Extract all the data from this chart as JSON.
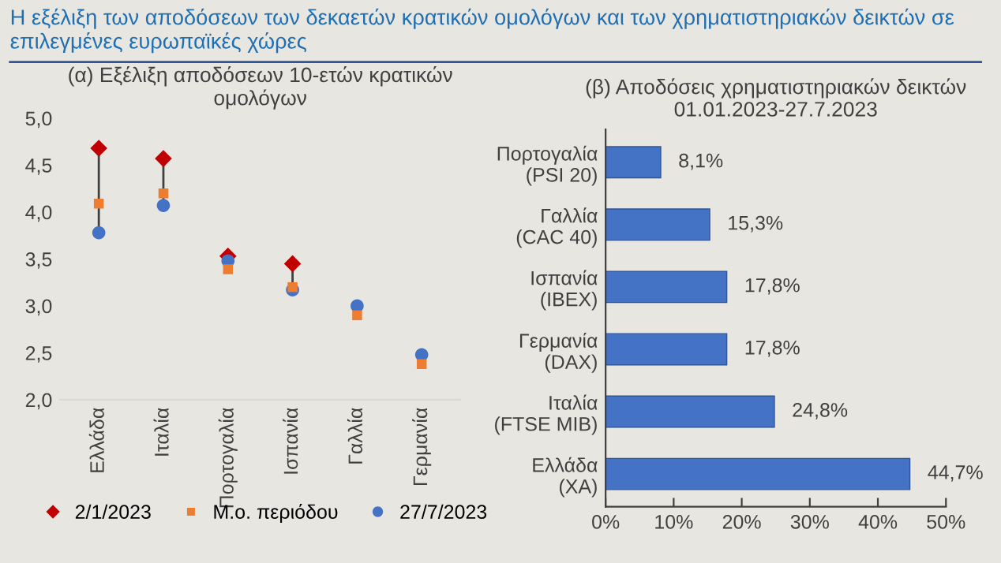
{
  "chart_data": [
    {
      "type": "scatter",
      "title": "(α) Εξέλιξη αποδόσεων 10-ετών κρατικών\nομολόγων",
      "annotations": [
        "Η εξέλιξη των αποδόσεων των δεκαετών κρατικών ομολόγων και των χρηματιστηριακών δεικτών σε\nεπιλεγμένες ευρωπαϊκές χώρες"
      ],
      "categories": [
        "Ελλάδα",
        "Ιταλία",
        "Πορτογαλία",
        "Ισπανία",
        "Γαλλία",
        "Γερμανία"
      ],
      "series": [
        {
          "name": "2/1/2023",
          "color": "#c00000",
          "marker": "diamond",
          "values": [
            4.68,
            4.57,
            3.53,
            3.45,
            null,
            null
          ]
        },
        {
          "name": "Μ.ο. περιόδου",
          "color": "#ed7d31",
          "marker": "square",
          "values": [
            4.09,
            4.2,
            3.39,
            3.2,
            2.9,
            2.38
          ]
        },
        {
          "name": "27/7/2023",
          "color": "#4472c4",
          "marker": "circle",
          "values": [
            3.78,
            4.07,
            3.48,
            3.17,
            3.0,
            2.48
          ]
        }
      ],
      "ylim": [
        2.0,
        5.0
      ],
      "yticks": [
        {
          "value": 2.0,
          "label": "2,0"
        },
        {
          "value": 2.5,
          "label": "2,5"
        },
        {
          "value": 3.0,
          "label": "3,0"
        },
        {
          "value": 3.5,
          "label": "3,5"
        },
        {
          "value": 4.0,
          "label": "4,0"
        },
        {
          "value": 4.5,
          "label": "4,5"
        },
        {
          "value": 5.0,
          "label": "5,0"
        }
      ],
      "grid": false,
      "legend": "bottom"
    },
    {
      "type": "bar",
      "orientation": "horizontal",
      "title": "(β) Αποδόσεις χρηματιστηριακών δεικτών\n01.01.2023-27.7.2023",
      "categories": [
        "Πορτογαλία\n(PSI 20)",
        "Γαλλία\n(CAC 40)",
        "Ισπανία\n(IBEX)",
        "Γερμανία\n(DAX)",
        "Ιταλία\n(FTSE MIB)",
        "Ελλάδα\n(ΧΑ)"
      ],
      "values": [
        8.1,
        15.3,
        17.8,
        17.8,
        24.8,
        44.7
      ],
      "color": "#4472c4",
      "value_labels": [
        "8,1%",
        "15,3%",
        "17,8%",
        "17,8%",
        "24,8%",
        "44,7%"
      ],
      "xlim": [
        0,
        50
      ],
      "xticks": [
        {
          "value": 0,
          "label": "0%"
        },
        {
          "value": 10,
          "label": "10%"
        },
        {
          "value": 20,
          "label": "20%"
        },
        {
          "value": 30,
          "label": "30%"
        },
        {
          "value": 40,
          "label": "40%"
        },
        {
          "value": 50,
          "label": "50%"
        }
      ],
      "grid": false
    }
  ]
}
